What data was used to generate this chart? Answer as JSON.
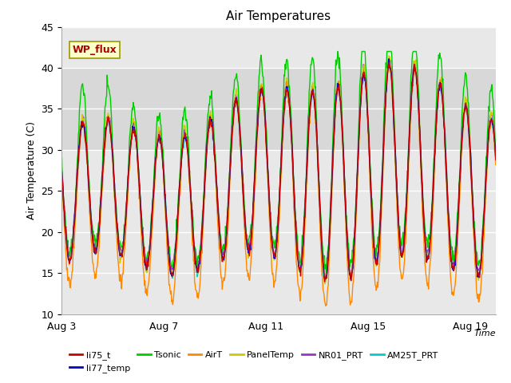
{
  "title": "Air Temperatures",
  "xlabel": "Time",
  "ylabel": "Air Temperature (C)",
  "ylim": [
    10,
    45
  ],
  "yticks": [
    10,
    15,
    20,
    25,
    30,
    35,
    40,
    45
  ],
  "xlim": [
    0,
    17
  ],
  "xtick_positions": [
    0,
    4,
    8,
    12,
    16
  ],
  "xtick_labels": [
    "Aug 3",
    "Aug 7",
    "Aug 11",
    "Aug 15",
    "Aug 19"
  ],
  "legend_entries": [
    {
      "label": "li75_t",
      "color": "#cc0000"
    },
    {
      "label": "li77_temp",
      "color": "#0000cc"
    },
    {
      "label": "Tsonic",
      "color": "#00cc00"
    },
    {
      "label": "AirT",
      "color": "#ff8800"
    },
    {
      "label": "PanelTemp",
      "color": "#cccc00"
    },
    {
      "label": "NR01_PRT",
      "color": "#9933cc"
    },
    {
      "label": "AM25T_PRT",
      "color": "#00cccc"
    }
  ],
  "wp_flux_box_facecolor": "#ffffcc",
  "wp_flux_text_color": "#aa0000",
  "wp_flux_border_color": "#999900",
  "bg_band_ymin": 30,
  "bg_band_ymax": 40,
  "bg_band_color": "#d8d8d8",
  "plot_bg_color": "#e8e8e8",
  "grid_color": "#ffffff",
  "title_fontsize": 11
}
